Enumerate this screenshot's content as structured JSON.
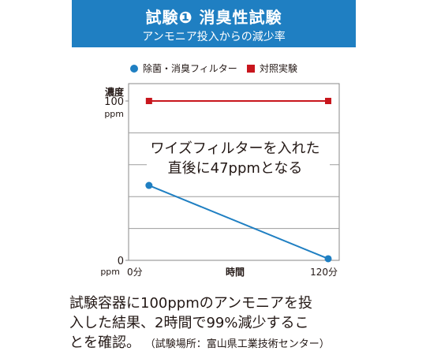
{
  "header": {
    "title": "試験❶ 消臭性試験",
    "subtitle": "アンモニア投入からの減少率",
    "bg_color": "#1f7fc2"
  },
  "legend": [
    {
      "label": "除菌・消臭フィルター",
      "color": "#1f7fc2",
      "marker": "circle"
    },
    {
      "label": "対照実験",
      "color": "#c8161d",
      "marker": "square"
    }
  ],
  "chart_data": {
    "type": "line",
    "ylabel": "濃度",
    "xlabel": "時間",
    "y_unit": "ppm",
    "ylim": [
      0,
      100
    ],
    "yticks": [
      "100",
      "0"
    ],
    "x_categories": [
      "0分",
      "120分"
    ],
    "grid": true,
    "series": [
      {
        "name": "除菌・消臭フィルター",
        "color": "#1f7fc2",
        "x": [
          2,
          120
        ],
        "values": [
          47,
          1
        ]
      },
      {
        "name": "対照実験",
        "color": "#c8161d",
        "x": [
          2,
          120
        ],
        "values": [
          100,
          100
        ]
      }
    ],
    "annotation": [
      "ワイズフィルターを入れた",
      "直後に47ppmとなる"
    ]
  },
  "footer": {
    "lines": [
      "試験容器に100ppmのアンモニアを投",
      "入した結果、2時間で99%減少するこ",
      "とを確認。"
    ],
    "note": "（試験場所：富山県工業技術センター）"
  }
}
